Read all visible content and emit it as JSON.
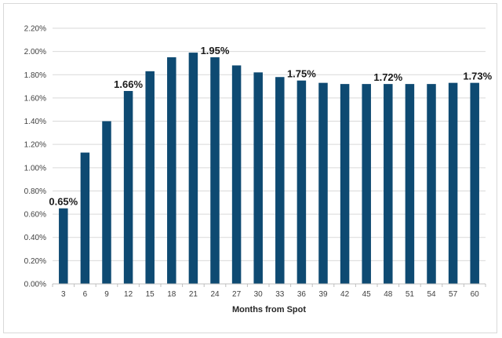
{
  "chart_data": {
    "type": "bar",
    "title": "",
    "xlabel": "Months from Spot",
    "ylabel": "",
    "categories": [
      "3",
      "6",
      "9",
      "12",
      "15",
      "18",
      "21",
      "24",
      "27",
      "30",
      "33",
      "36",
      "39",
      "42",
      "45",
      "48",
      "51",
      "54",
      "57",
      "60"
    ],
    "values": [
      0.65,
      1.13,
      1.4,
      1.66,
      1.83,
      1.95,
      1.99,
      1.95,
      1.88,
      1.82,
      1.78,
      1.75,
      1.73,
      1.72,
      1.72,
      1.72,
      1.72,
      1.72,
      1.73,
      1.73
    ],
    "value_unit": "%",
    "ylim": [
      0,
      2.2
    ],
    "y_ticks": [
      "0.00%",
      "0.20%",
      "0.40%",
      "0.60%",
      "0.80%",
      "1.00%",
      "1.20%",
      "1.40%",
      "1.60%",
      "1.80%",
      "2.00%",
      "2.20%"
    ],
    "grid": true,
    "legend": "none",
    "bar_color": "#0e4a72",
    "data_labels": [
      {
        "category": "3",
        "text": "0.65%"
      },
      {
        "category": "12",
        "text": "1.66%"
      },
      {
        "category": "24",
        "text": "1.95%"
      },
      {
        "category": "36",
        "text": "1.75%"
      },
      {
        "category": "48",
        "text": "1.72%"
      },
      {
        "category": "60",
        "text": "1.73%"
      }
    ]
  }
}
